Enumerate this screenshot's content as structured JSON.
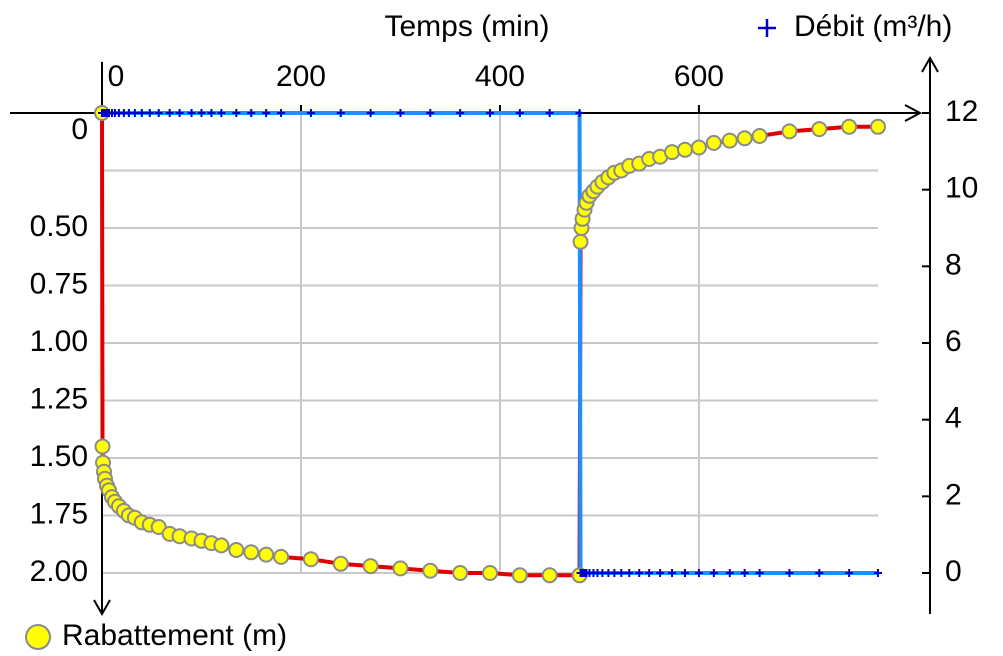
{
  "chart_data": {
    "type": "line",
    "x_label": "Temps (min)",
    "xlim": [
      0,
      780
    ],
    "xticks": [
      0,
      200,
      400,
      600
    ],
    "ylim": [
      0,
      2
    ],
    "y_inverted": true,
    "yticks": [
      0,
      {
        "value": 0.25,
        "label": null
      },
      {
        "value": 0.5,
        "label": "0.50"
      },
      {
        "value": 0.75,
        "label": "0.75"
      },
      {
        "value": 1,
        "label": "1.00"
      },
      {
        "value": 1.25,
        "label": "1.25"
      },
      {
        "value": 1.5,
        "label": "1.50"
      },
      {
        "value": 1.75,
        "label": "1.75"
      },
      {
        "value": 2,
        "label": "2.00"
      }
    ],
    "y2lim": [
      0,
      12
    ],
    "y2ticks": [
      0,
      2,
      4,
      6,
      8,
      10,
      12
    ],
    "grid": true,
    "series": [
      {
        "name": "Rabattement (m)",
        "color": "#e00000",
        "marker": "circle",
        "marker_color": "#ffff00",
        "legend": "bottom-left",
        "x": [
          0,
          0.5,
          1,
          2,
          3,
          5,
          7,
          10,
          13,
          17,
          22,
          27,
          33,
          40,
          48,
          57,
          68,
          78,
          90,
          100,
          110,
          120,
          135,
          150,
          165,
          180,
          210,
          240,
          270,
          300,
          330,
          360,
          390,
          420,
          450,
          480,
          481,
          482,
          483,
          485,
          487,
          490,
          494,
          498,
          503,
          509,
          515,
          522,
          530,
          540,
          550,
          561,
          573,
          586,
          600,
          615,
          631,
          646,
          661,
          691,
          721,
          751,
          780
        ],
        "values": [
          0,
          1.45,
          1.52,
          1.56,
          1.59,
          1.62,
          1.64,
          1.67,
          1.69,
          1.71,
          1.73,
          1.75,
          1.76,
          1.78,
          1.79,
          1.8,
          1.83,
          1.84,
          1.85,
          1.86,
          1.87,
          1.88,
          1.9,
          1.91,
          1.92,
          1.93,
          1.94,
          1.96,
          1.97,
          1.98,
          1.99,
          2.0,
          2.0,
          2.01,
          2.01,
          2.01,
          0.56,
          0.5,
          0.46,
          0.42,
          0.39,
          0.36,
          0.34,
          0.32,
          0.3,
          0.28,
          0.26,
          0.25,
          0.23,
          0.22,
          0.2,
          0.19,
          0.17,
          0.16,
          0.15,
          0.13,
          0.12,
          0.11,
          0.1,
          0.08,
          0.07,
          0.06,
          0.06
        ]
      },
      {
        "name": "Débit (m³/h)",
        "axis": "y2",
        "color": "#1e8fff",
        "marker": "plus",
        "marker_color": "#0000c8",
        "legend": "top-right",
        "x": [
          0,
          0.5,
          1,
          2,
          3,
          5,
          7,
          10,
          13,
          17,
          22,
          27,
          33,
          40,
          48,
          57,
          68,
          78,
          90,
          100,
          110,
          120,
          135,
          150,
          165,
          180,
          210,
          240,
          270,
          300,
          330,
          360,
          390,
          420,
          450,
          480,
          481,
          482,
          483,
          485,
          487,
          490,
          494,
          498,
          503,
          509,
          515,
          522,
          530,
          540,
          550,
          561,
          573,
          586,
          600,
          615,
          631,
          646,
          661,
          691,
          721,
          751,
          780
        ],
        "values": [
          12,
          12,
          12,
          12,
          12,
          12,
          12,
          12,
          12,
          12,
          12,
          12,
          12,
          12,
          12,
          12,
          12,
          12,
          12,
          12,
          12,
          12,
          12,
          12,
          12,
          12,
          12,
          12,
          12,
          12,
          12,
          12,
          12,
          12,
          12,
          12,
          0,
          0,
          0,
          0,
          0,
          0,
          0,
          0,
          0,
          0,
          0,
          0,
          0,
          0,
          0,
          0,
          0,
          0,
          0,
          0,
          0,
          0,
          0,
          0,
          0,
          0,
          0
        ]
      }
    ]
  }
}
